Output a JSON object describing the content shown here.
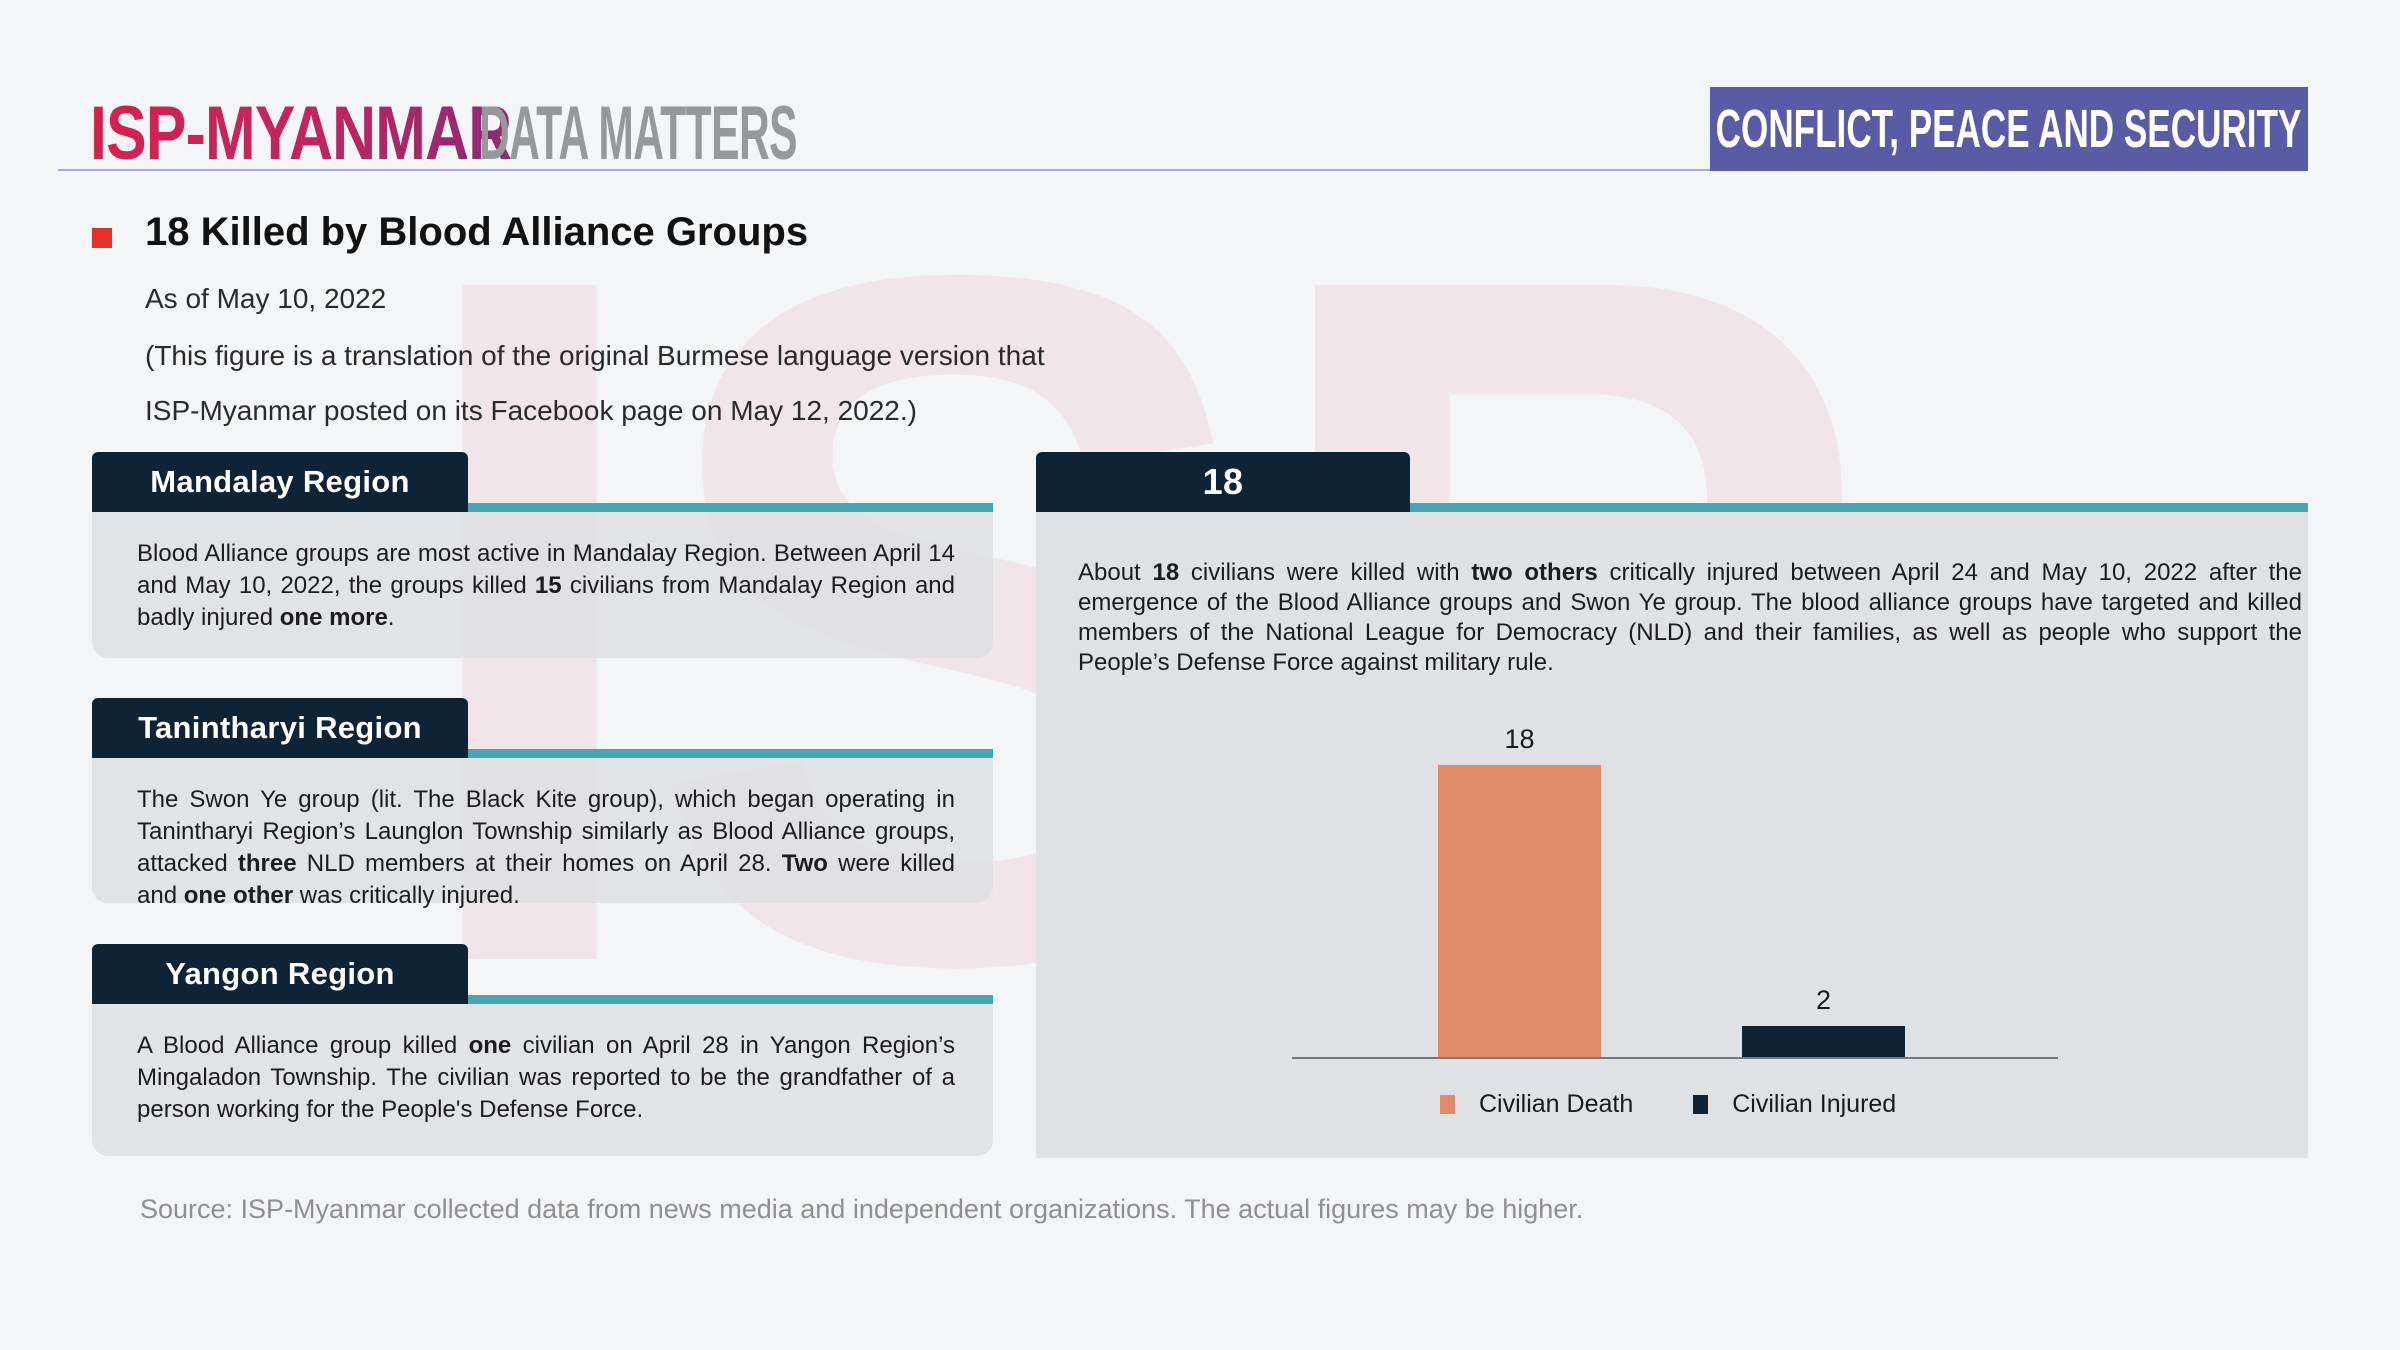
{
  "header": {
    "logo_primary": "ISP-MYANMAR",
    "logo_secondary": "DATA MATTERS",
    "badge": "CONFLICT, PEACE AND SECURITY"
  },
  "watermark": "ISP",
  "title": {
    "heading": "18 Killed by Blood Alliance Groups",
    "as_of": "As of May 10, 2022",
    "note_line1": "(This figure is a translation of the original Burmese language version that",
    "note_line2": "ISP-Myanmar posted on its Facebook page on May 12, 2022.)"
  },
  "regions": [
    {
      "title": "Mandalay Region",
      "body": [
        {
          "t": "Blood Alliance groups are most active in Mandalay Region. Between April 14 and May 10, 2022, the groups killed "
        },
        {
          "t": "15",
          "b": true
        },
        {
          "t": " civilians from Mandalay Region and badly injured "
        },
        {
          "t": "one more",
          "b": true
        },
        {
          "t": "."
        }
      ]
    },
    {
      "title": "Tanintharyi Region",
      "body": [
        {
          "t": "The Swon Ye group (lit. The Black Kite group), which began operating in Tanintharyi Region’s Launglon Township similarly as Blood Alliance groups, attacked "
        },
        {
          "t": "three",
          "b": true
        },
        {
          "t": " NLD members at their homes on April 28. "
        },
        {
          "t": "Two",
          "b": true
        },
        {
          "t": " were killed and "
        },
        {
          "t": "one other",
          "b": true
        },
        {
          "t": " was critically injured."
        }
      ]
    },
    {
      "title": "Yangon Region",
      "body": [
        {
          "t": "A Blood Alliance group killed "
        },
        {
          "t": "one",
          "b": true
        },
        {
          "t": " civilian on April 28 in Yangon Region’s Mingaladon Township. The civilian was reported to be the grandfather of a person working for the People's Defense Force."
        }
      ]
    }
  ],
  "summary": {
    "tab": "18",
    "body": [
      {
        "t": "About "
      },
      {
        "t": "18",
        "b": true
      },
      {
        "t": " civilians were killed with "
      },
      {
        "t": "two others",
        "b": true
      },
      {
        "t": " critically injured between April 24 and May 10, 2022 after the emergence of the Blood Alliance groups and Swon Ye group. The blood alliance groups have targeted and killed members of the National League for Democracy (NLD) and their families, as well as people who support the People’s Defense Force against military rule."
      }
    ]
  },
  "chart_data": {
    "type": "bar",
    "categories": [
      "Civilian Death",
      "Civilian Injured"
    ],
    "values": [
      18,
      2
    ],
    "colors": [
      "#DF8A68",
      "#0F2336"
    ],
    "title": "",
    "xlabel": "",
    "ylabel": "",
    "ylim": [
      0,
      18
    ],
    "grid": false,
    "legend_position": "bottom"
  },
  "footer": {
    "source": "Source: ISP-Myanmar collected data from news media and independent organizations. The actual figures may be higher."
  },
  "colors": {
    "background": "#F4F5F7",
    "navy": "#0E2336",
    "teal": "#48A6B1",
    "salmon": "#DF8A68",
    "badge_purple": "#5A5BA5",
    "logo_pink": "#D6214E",
    "logo_purple": "#8C2973",
    "bullet_red": "#E63128",
    "card_gray": "#DEDFE3"
  }
}
